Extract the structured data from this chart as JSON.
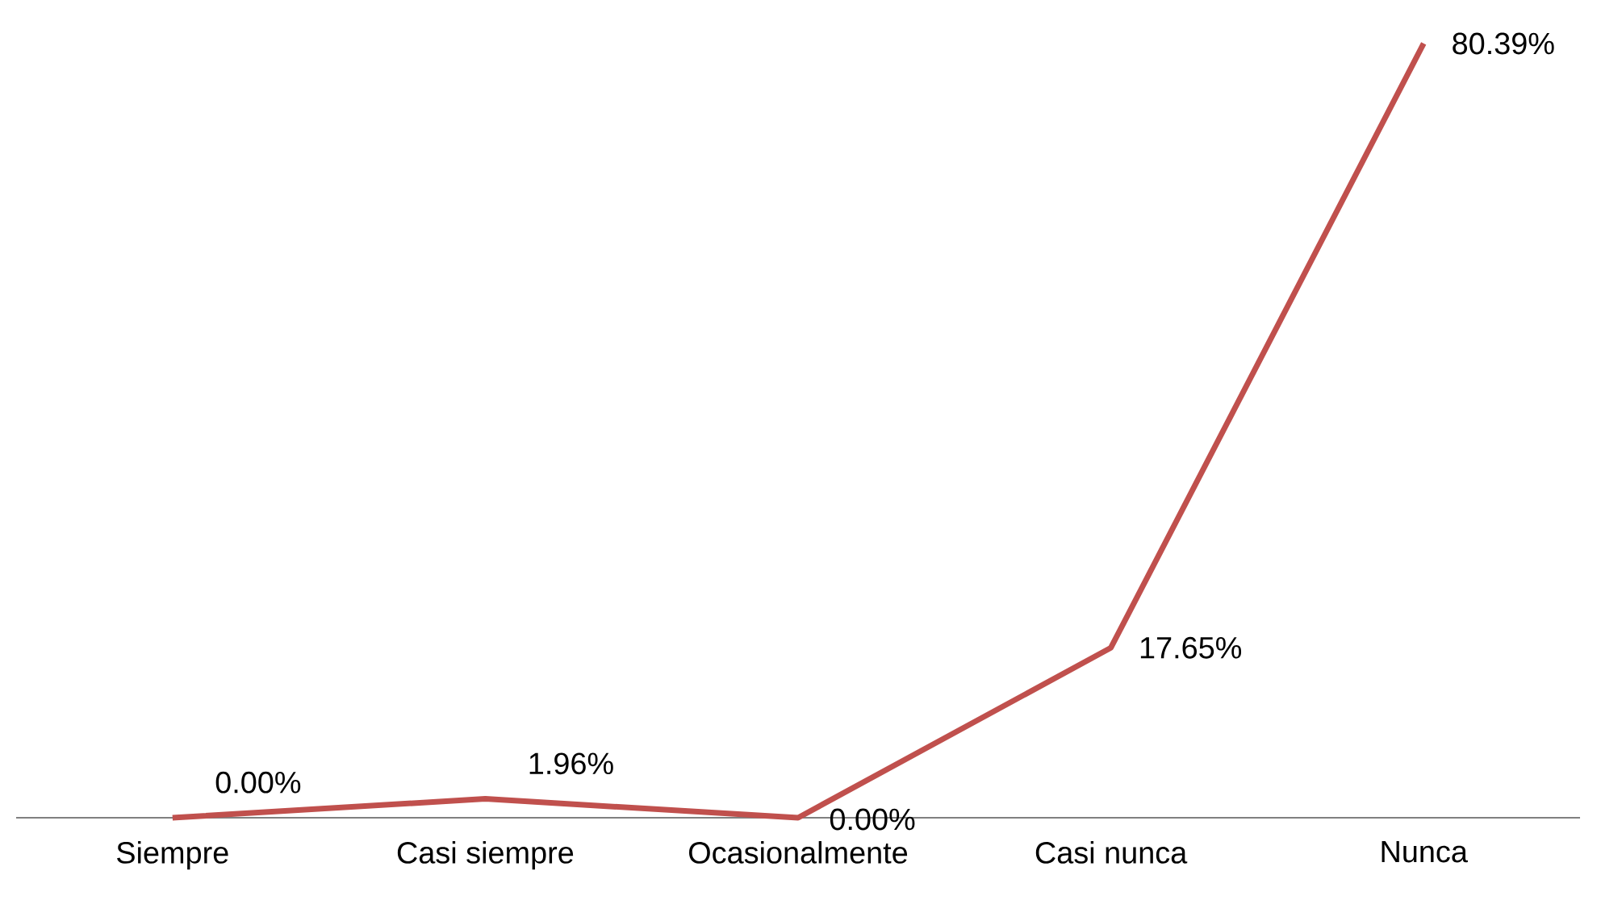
{
  "chart_data": {
    "type": "line",
    "categories": [
      "Siempre",
      "Casi siempre",
      "Ocasionalmente",
      "Casi nunca",
      "Nunca"
    ],
    "values": [
      0,
      1.96,
      0,
      17.65,
      80.39
    ],
    "value_labels": [
      "0.00%",
      "1.96%",
      "0.00%",
      "17.65%",
      "80.39%"
    ],
    "color": "#c0504d"
  }
}
